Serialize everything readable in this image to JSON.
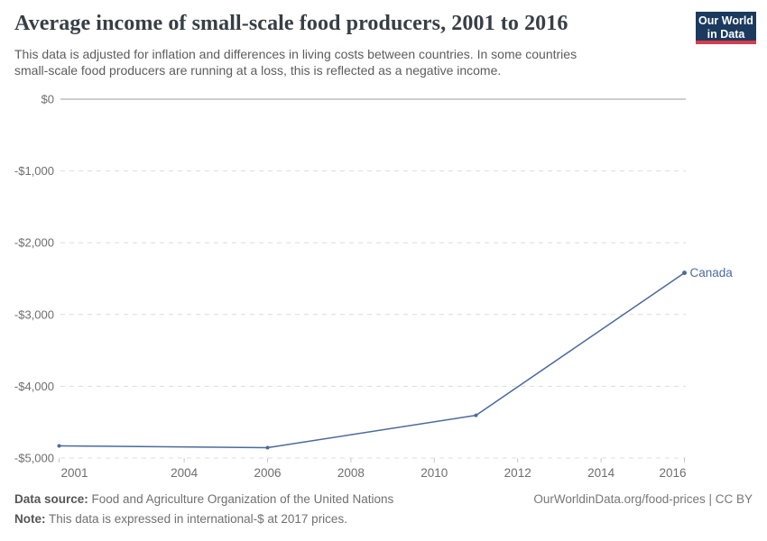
{
  "header": {
    "title": "Average income of small-scale food producers, 2001 to 2016",
    "subtitle_line1": "This data is adjusted for inflation and differences in living costs between countries. In some countries",
    "subtitle_line2": "small-scale food producers are running at a loss, this is reflected as a negative income.",
    "logo": {
      "line1": "Our World",
      "line2": "in Data",
      "bg_color": "#1b3a5e",
      "accent_color": "#d73c4e"
    }
  },
  "chart_data": {
    "type": "line",
    "title": "Average income of small-scale food producers, 2001 to 2016",
    "x": [
      2001,
      2006,
      2011,
      2016
    ],
    "series": [
      {
        "name": "Canada",
        "color": "#4C6A9C",
        "values": [
          -4830,
          -4855,
          -4405,
          -2420
        ]
      }
    ],
    "xlabel": "",
    "ylabel": "",
    "xlim": [
      2001,
      2016
    ],
    "ylim": [
      -5000,
      0
    ],
    "grid": true,
    "legend_position": "end-of-line-label",
    "yticks": [
      {
        "value": 0,
        "label": "$0"
      },
      {
        "value": -1000,
        "label": "-$1,000"
      },
      {
        "value": -2000,
        "label": "-$2,000"
      },
      {
        "value": -3000,
        "label": "-$3,000"
      },
      {
        "value": -4000,
        "label": "-$4,000"
      },
      {
        "value": -5000,
        "label": "-$5,000"
      }
    ],
    "xticks": [
      {
        "value": 2001,
        "label": "2001",
        "align": "start"
      },
      {
        "value": 2004,
        "label": "2004",
        "align": "middle"
      },
      {
        "value": 2006,
        "label": "2006",
        "align": "middle"
      },
      {
        "value": 2008,
        "label": "2008",
        "align": "middle"
      },
      {
        "value": 2010,
        "label": "2010",
        "align": "middle"
      },
      {
        "value": 2012,
        "label": "2012",
        "align": "middle"
      },
      {
        "value": 2014,
        "label": "2014",
        "align": "middle"
      },
      {
        "value": 2016,
        "label": "2016",
        "align": "end"
      }
    ],
    "colors": {
      "line": "#4C6A9C",
      "zero_line": "#9e9e9e",
      "gridline": "#dcdcdc",
      "tick_mark": "#c8c8c8",
      "tick_label": "#6e6e6e"
    }
  },
  "footer": {
    "datasource_label": "Data source:",
    "datasource_text": " Food and Agriculture Organization of the United Nations",
    "note_label": "Note:",
    "note_text": " This data is expressed in international-$ at 2017 prices.",
    "link_text": "OurWorldinData.org/food-prices | CC BY"
  }
}
